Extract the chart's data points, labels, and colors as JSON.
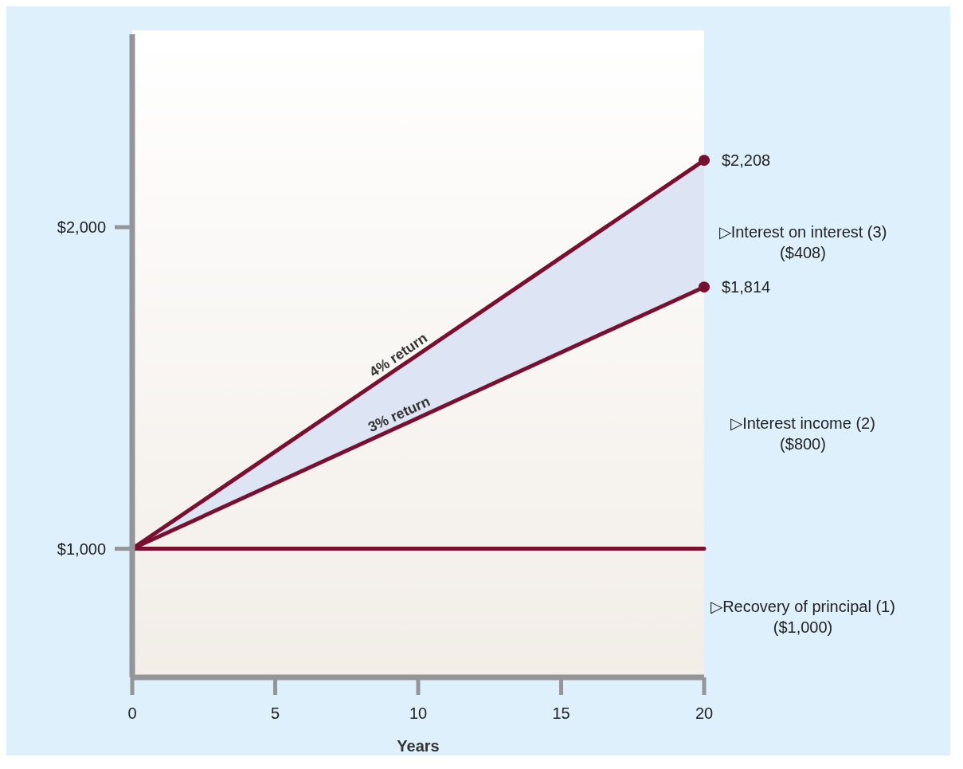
{
  "chart_data": {
    "type": "line",
    "xlabel": "Years",
    "x": [
      0,
      20
    ],
    "xlim": [
      0,
      20
    ],
    "xticks": [
      0,
      5,
      10,
      15,
      20
    ],
    "ylim": [
      600,
      2600
    ],
    "yticks": [
      {
        "value": 1000,
        "label": "$1,000"
      },
      {
        "value": 2000,
        "label": "$2,000"
      }
    ],
    "grid": false,
    "legend": false,
    "line_style": "solid",
    "series": [
      {
        "name": "4% return",
        "color": "#7a1030",
        "values": [
          1000,
          2208
        ],
        "lower": [
          1000,
          1814
        ],
        "upper": [
          1000,
          2208
        ]
      },
      {
        "name": "3% return",
        "color": "#7a1030",
        "values": [
          1000,
          1814
        ]
      },
      {
        "color": "#7a1030",
        "values": [
          1000,
          1000
        ]
      },
      {
        "type": "scatter",
        "color": "#7a1030",
        "x": [
          20,
          20
        ],
        "values": [
          2208,
          1814
        ],
        "value_labels": [
          "$2,208",
          "$1,814"
        ],
        "marker": "circle"
      }
    ],
    "annotations": [
      "▷Interest on interest (3)\n($408)",
      "▷Interest income (2)\n($800)",
      "▷Recovery of principal (1)\n($1,000)"
    ]
  }
}
